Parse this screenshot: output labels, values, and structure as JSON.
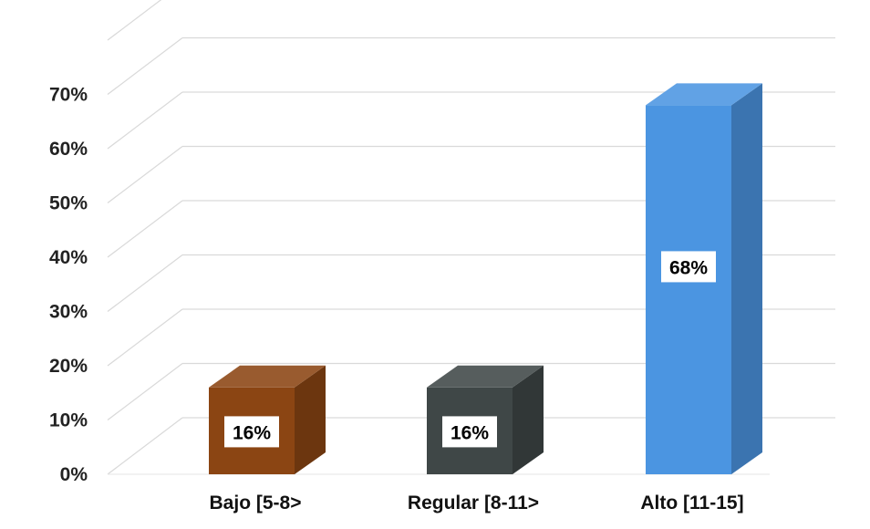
{
  "chart_data": {
    "type": "bar",
    "categories": [
      "Bajo [5-8>",
      "Regular [8-11>",
      "Alto [11-15]"
    ],
    "values": [
      16,
      16,
      68
    ],
    "data_labels": [
      "16%",
      "16%",
      "68%"
    ],
    "y_ticks": [
      "0%",
      "10%",
      "20%",
      "30%",
      "40%",
      "50%",
      "60%",
      "70%"
    ],
    "ylim": [
      0,
      80
    ],
    "grid": true,
    "style": "3d-column",
    "colors": [
      "#8b4513",
      "#3f4747",
      "#4b95e1"
    ]
  }
}
